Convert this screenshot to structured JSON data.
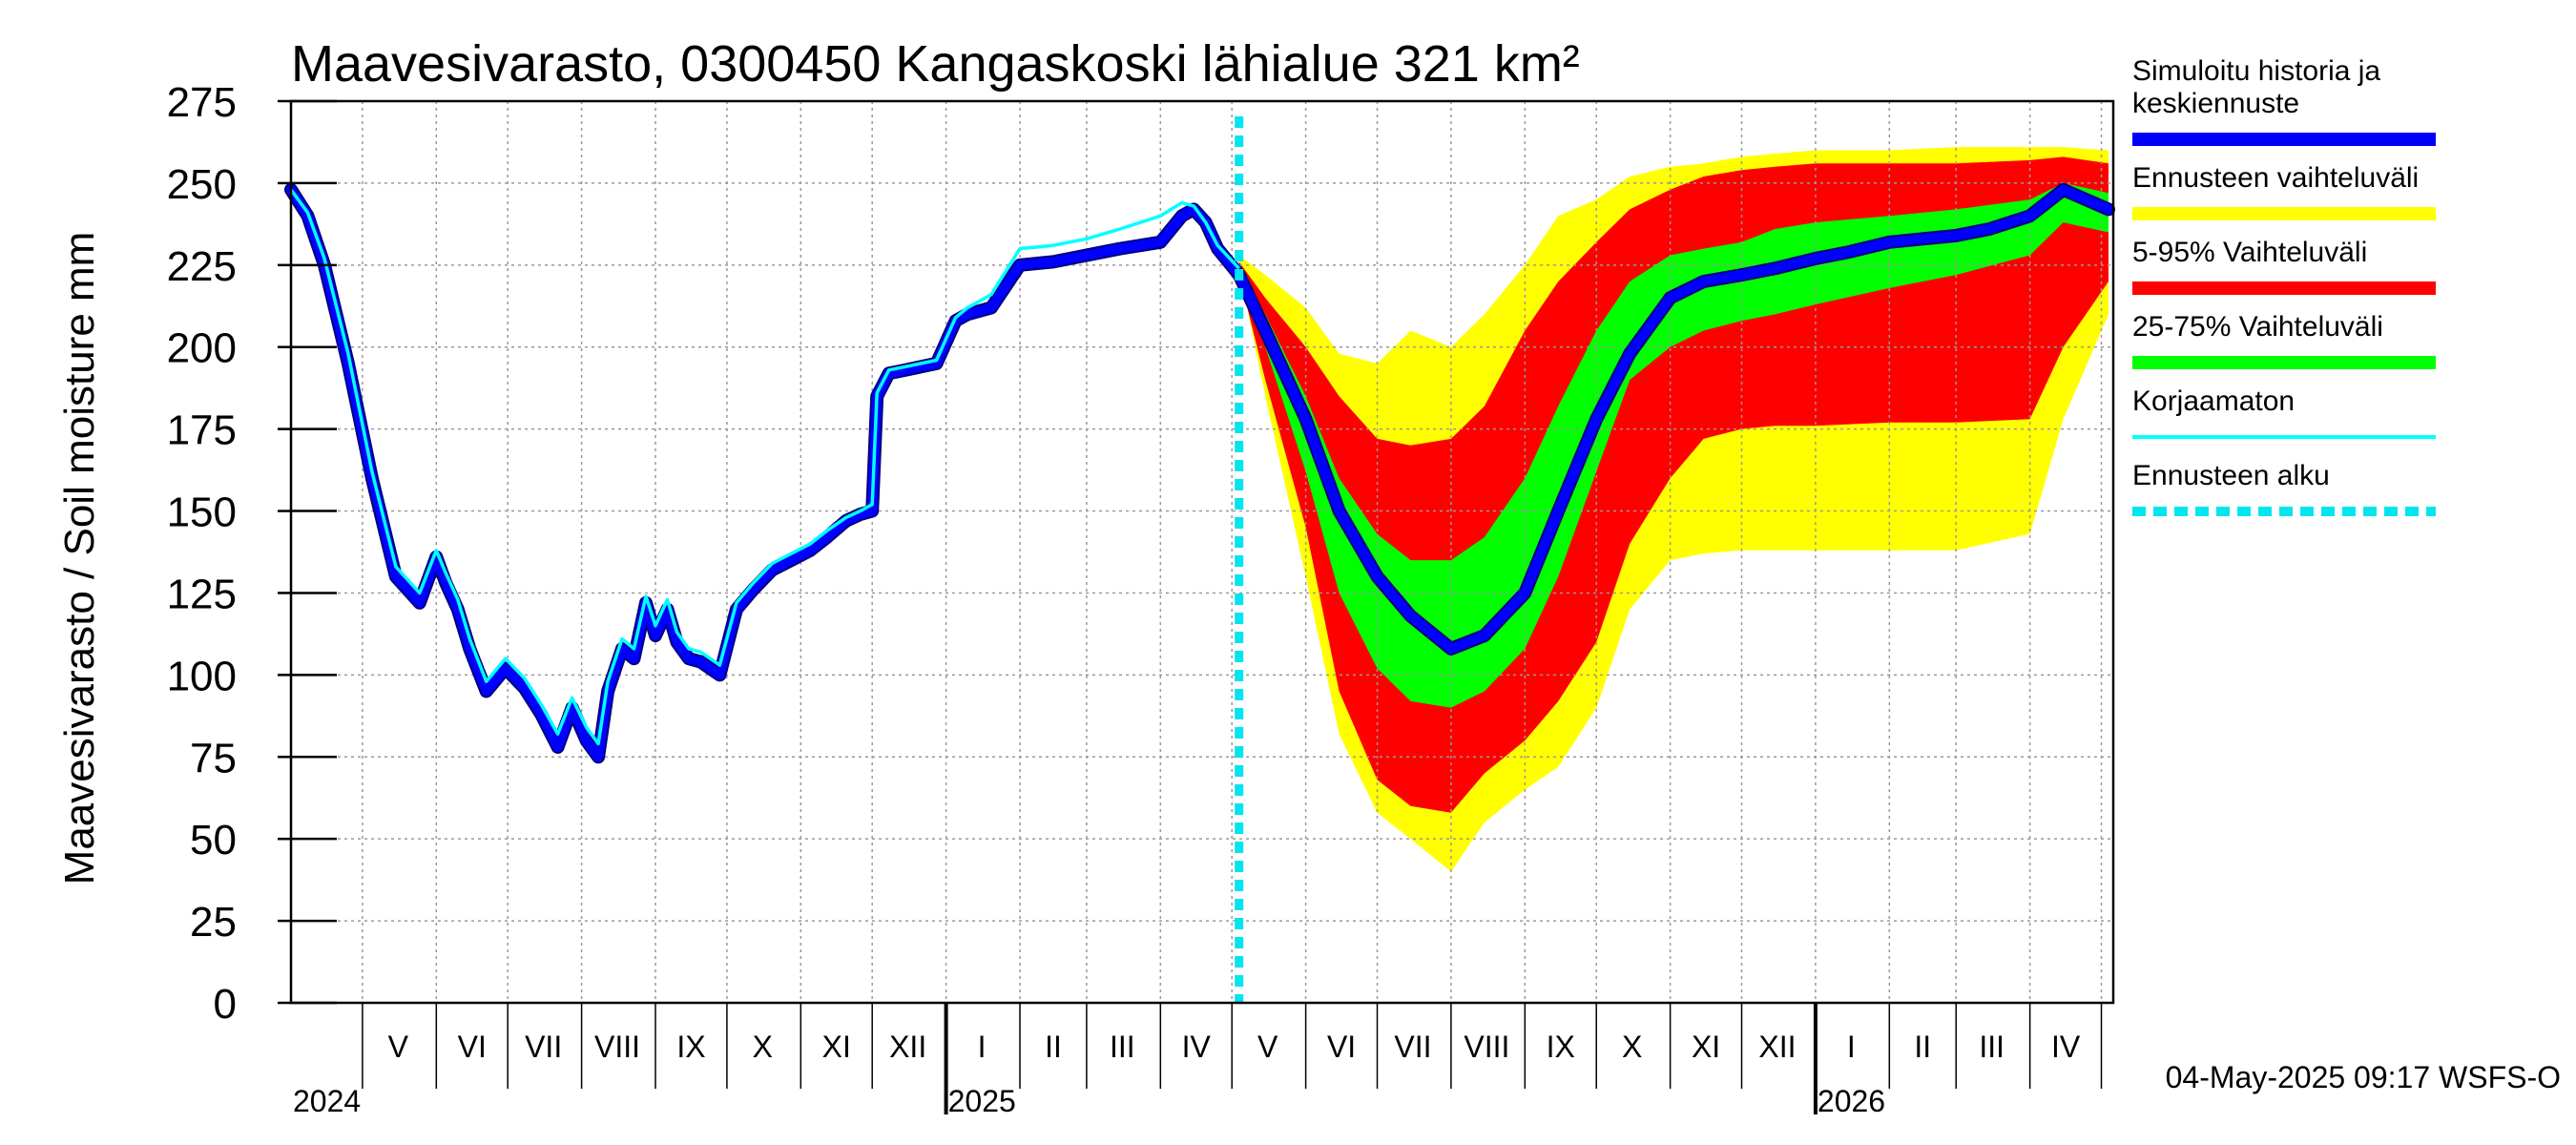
{
  "chart_data": {
    "type": "area",
    "title": "Maavesivarasto, 0300450 Kangaskoski lähialue 321 km²",
    "ylabel": "Maavesivarasto / Soil moisture   mm",
    "xlabel": "",
    "ylim": [
      0,
      275
    ],
    "yticks": [
      "0",
      "25",
      "50",
      "75",
      "100",
      "125",
      "150",
      "175",
      "200",
      "225",
      "250",
      "275"
    ],
    "xlim": [
      "2024-04-01",
      "2026-05-06"
    ],
    "grid": true,
    "months": [
      {
        "label": "V",
        "date": "2024-05-16"
      },
      {
        "label": "VI",
        "date": "2024-06-16"
      },
      {
        "label": "VII",
        "date": "2024-07-16"
      },
      {
        "label": "VIII",
        "date": "2024-08-16"
      },
      {
        "label": "IX",
        "date": "2024-09-16"
      },
      {
        "label": "X",
        "date": "2024-10-16"
      },
      {
        "label": "XI",
        "date": "2024-11-16"
      },
      {
        "label": "XII",
        "date": "2024-12-16"
      },
      {
        "label": "I",
        "date": "2025-01-16"
      },
      {
        "label": "II",
        "date": "2025-02-15"
      },
      {
        "label": "III",
        "date": "2025-03-16"
      },
      {
        "label": "IV",
        "date": "2025-04-16"
      },
      {
        "label": "V",
        "date": "2025-05-16"
      },
      {
        "label": "VI",
        "date": "2025-06-16"
      },
      {
        "label": "VII",
        "date": "2025-07-16"
      },
      {
        "label": "VIII",
        "date": "2025-08-16"
      },
      {
        "label": "IX",
        "date": "2025-09-16"
      },
      {
        "label": "X",
        "date": "2025-10-16"
      },
      {
        "label": "XI",
        "date": "2025-11-16"
      },
      {
        "label": "XII",
        "date": "2025-12-16"
      },
      {
        "label": "I",
        "date": "2026-01-16"
      },
      {
        "label": "II",
        "date": "2026-02-15"
      },
      {
        "label": "III",
        "date": "2026-03-16"
      },
      {
        "label": "IV",
        "date": "2026-04-16"
      }
    ],
    "years": [
      {
        "label": "2024",
        "date": "2024-04-01"
      },
      {
        "label": "2025",
        "date": "2025-01-01"
      },
      {
        "label": "2026",
        "date": "2026-01-01"
      }
    ],
    "forecast_start": "2025-05-04",
    "series": [
      {
        "name": "Ennusteen vaihteluväli",
        "kind": "band",
        "color": "#ffff00",
        "x": [
          "2025-05-04",
          "2025-05-15",
          "2025-06-01",
          "2025-06-15",
          "2025-07-01",
          "2025-07-15",
          "2025-08-01",
          "2025-08-15",
          "2025-09-01",
          "2025-09-15",
          "2025-10-01",
          "2025-10-15",
          "2025-11-01",
          "2025-11-15",
          "2025-12-01",
          "2025-12-15",
          "2026-01-01",
          "2026-02-01",
          "2026-03-01",
          "2026-04-01",
          "2026-04-15",
          "2026-05-04"
        ],
        "lower": [
          224,
          185,
          130,
          82,
          58,
          50,
          40,
          55,
          65,
          72,
          90,
          120,
          135,
          137,
          138,
          138,
          138,
          138,
          138,
          143,
          178,
          210
        ],
        "upper": [
          228,
          222,
          212,
          198,
          195,
          205,
          200,
          210,
          225,
          240,
          245,
          252,
          255,
          256,
          258,
          259,
          260,
          260,
          261,
          261,
          261,
          260
        ]
      },
      {
        "name": "5-95% Vaihteluväli",
        "kind": "band",
        "color": "#ff0000",
        "x": [
          "2025-05-04",
          "2025-05-15",
          "2025-06-01",
          "2025-06-15",
          "2025-07-01",
          "2025-07-15",
          "2025-08-01",
          "2025-08-15",
          "2025-09-01",
          "2025-09-15",
          "2025-10-01",
          "2025-10-15",
          "2025-11-01",
          "2025-11-15",
          "2025-12-01",
          "2025-12-15",
          "2026-01-01",
          "2026-02-01",
          "2026-03-01",
          "2026-04-01",
          "2026-04-15",
          "2026-05-04"
        ],
        "lower": [
          222,
          190,
          145,
          95,
          68,
          60,
          58,
          70,
          80,
          92,
          110,
          140,
          160,
          172,
          175,
          176,
          176,
          177,
          177,
          178,
          200,
          220
        ],
        "upper": [
          226,
          215,
          200,
          185,
          172,
          170,
          172,
          182,
          205,
          220,
          232,
          242,
          248,
          252,
          254,
          255,
          256,
          256,
          256,
          257,
          258,
          256
        ]
      },
      {
        "name": "25-75% Vaihteluväli",
        "kind": "band",
        "color": "#00ff00",
        "x": [
          "2025-05-04",
          "2025-05-15",
          "2025-06-01",
          "2025-06-15",
          "2025-07-01",
          "2025-07-15",
          "2025-08-01",
          "2025-08-15",
          "2025-09-01",
          "2025-09-15",
          "2025-10-01",
          "2025-10-15",
          "2025-11-01",
          "2025-11-15",
          "2025-12-01",
          "2025-12-15",
          "2026-01-01",
          "2026-02-01",
          "2026-03-01",
          "2026-04-01",
          "2026-04-15",
          "2026-05-04"
        ],
        "lower": [
          223,
          200,
          162,
          125,
          102,
          92,
          90,
          95,
          108,
          130,
          162,
          190,
          200,
          205,
          208,
          210,
          213,
          218,
          222,
          228,
          238,
          235
        ],
        "upper": [
          225,
          210,
          185,
          160,
          143,
          135,
          135,
          142,
          160,
          182,
          205,
          220,
          228,
          230,
          232,
          236,
          238,
          240,
          242,
          245,
          250,
          247
        ]
      },
      {
        "name": "Simuloitu historia ja keskiennuste",
        "kind": "line",
        "color": "#0000ff",
        "x": [
          "2024-04-01",
          "2024-04-08",
          "2024-04-15",
          "2024-04-25",
          "2024-05-05",
          "2024-05-15",
          "2024-05-25",
          "2024-06-01",
          "2024-06-05",
          "2024-06-10",
          "2024-06-15",
          "2024-06-22",
          "2024-06-30",
          "2024-07-08",
          "2024-07-15",
          "2024-07-22",
          "2024-07-28",
          "2024-08-03",
          "2024-08-08",
          "2024-08-12",
          "2024-08-18",
          "2024-08-23",
          "2024-08-28",
          "2024-09-01",
          "2024-09-06",
          "2024-09-10",
          "2024-09-15",
          "2024-09-20",
          "2024-09-28",
          "2024-10-05",
          "2024-10-12",
          "2024-10-20",
          "2024-10-28",
          "2024-11-05",
          "2024-11-12",
          "2024-11-20",
          "2024-11-26",
          "2024-12-01",
          "2024-12-03",
          "2024-12-08",
          "2024-12-15",
          "2024-12-28",
          "2025-01-05",
          "2025-01-10",
          "2025-01-20",
          "2025-02-01",
          "2025-02-15",
          "2025-03-01",
          "2025-03-15",
          "2025-04-01",
          "2025-04-10",
          "2025-04-15",
          "2025-04-20",
          "2025-04-25",
          "2025-05-04",
          "2025-05-15",
          "2025-06-01",
          "2025-06-15",
          "2025-07-01",
          "2025-07-15",
          "2025-08-01",
          "2025-08-15",
          "2025-09-01",
          "2025-09-15",
          "2025-10-01",
          "2025-10-15",
          "2025-11-01",
          "2025-11-15",
          "2025-12-01",
          "2025-12-15",
          "2026-01-01",
          "2026-01-15",
          "2026-02-01",
          "2026-02-15",
          "2026-03-01",
          "2026-03-15",
          "2026-04-01",
          "2026-04-15",
          "2026-05-04"
        ],
        "values": [
          248,
          240,
          225,
          195,
          160,
          130,
          122,
          136,
          128,
          120,
          108,
          95,
          102,
          96,
          88,
          78,
          90,
          80,
          75,
          95,
          108,
          105,
          122,
          112,
          120,
          110,
          105,
          104,
          100,
          120,
          126,
          132,
          135,
          138,
          142,
          147,
          149,
          150,
          185,
          192,
          193,
          195,
          208,
          210,
          212,
          225,
          226,
          228,
          230,
          232,
          240,
          242,
          238,
          230,
          222,
          205,
          178,
          150,
          130,
          118,
          108,
          112,
          125,
          150,
          178,
          198,
          215,
          220,
          222,
          224,
          227,
          229,
          232,
          233,
          234,
          236,
          240,
          248,
          242
        ]
      },
      {
        "name": "Korjaamaton",
        "kind": "line",
        "color": "#00ffff",
        "x": [
          "2024-04-01",
          "2024-04-08",
          "2024-04-15",
          "2024-04-25",
          "2024-05-05",
          "2024-05-15",
          "2024-05-25",
          "2024-06-01",
          "2024-06-05",
          "2024-06-10",
          "2024-06-15",
          "2024-06-22",
          "2024-06-30",
          "2024-07-08",
          "2024-07-15",
          "2024-07-22",
          "2024-07-28",
          "2024-08-03",
          "2024-08-08",
          "2024-08-12",
          "2024-08-18",
          "2024-08-23",
          "2024-08-28",
          "2024-09-01",
          "2024-09-06",
          "2024-09-10",
          "2024-09-15",
          "2024-09-20",
          "2024-09-28",
          "2024-10-05",
          "2024-10-12",
          "2024-10-20",
          "2024-10-28",
          "2024-11-05",
          "2024-11-12",
          "2024-11-20",
          "2024-11-26",
          "2024-12-01",
          "2024-12-03",
          "2024-12-08",
          "2024-12-15",
          "2024-12-28",
          "2025-01-05",
          "2025-01-10",
          "2025-01-20",
          "2025-02-01",
          "2025-02-15",
          "2025-03-01",
          "2025-03-15",
          "2025-04-01",
          "2025-04-10",
          "2025-04-15",
          "2025-04-20",
          "2025-04-25",
          "2025-05-04"
        ],
        "values": [
          248,
          241,
          227,
          198,
          162,
          133,
          125,
          138,
          131,
          123,
          111,
          98,
          105,
          99,
          91,
          82,
          93,
          84,
          79,
          98,
          111,
          108,
          124,
          115,
          123,
          113,
          108,
          107,
          103,
          122,
          128,
          134,
          137,
          140,
          144,
          148,
          150,
          152,
          186,
          193,
          194,
          196,
          209,
          212,
          216,
          230,
          231,
          233,
          236,
          240,
          244,
          243,
          238,
          231,
          224
        ]
      }
    ],
    "legend": {
      "placement": "right",
      "items": [
        {
          "label": "Simuloitu historia ja keskiennuste",
          "lines": [
            "Simuloitu historia ja",
            "keskiennuste"
          ],
          "color": "#0000ff",
          "style": "thick"
        },
        {
          "label": "Ennusteen vaihteluväli",
          "lines": [
            "Ennusteen vaihteluväli"
          ],
          "color": "#ffff00",
          "style": "thick"
        },
        {
          "label": "5-95% Vaihteluväli",
          "lines": [
            "5-95% Vaihteluväli"
          ],
          "color": "#ff0000",
          "style": "thick"
        },
        {
          "label": "25-75% Vaihteluväli",
          "lines": [
            "25-75% Vaihteluväli"
          ],
          "color": "#00ff00",
          "style": "thick"
        },
        {
          "label": "Korjaamaton",
          "lines": [
            "Korjaamaton"
          ],
          "color": "#00ffff",
          "style": "thin"
        },
        {
          "label": "Ennusteen alku",
          "lines": [
            "Ennusteen alku"
          ],
          "color": "#00e5ee",
          "style": "dashed"
        }
      ]
    },
    "timestamp": "04-May-2025 09:17 WSFS-O"
  }
}
